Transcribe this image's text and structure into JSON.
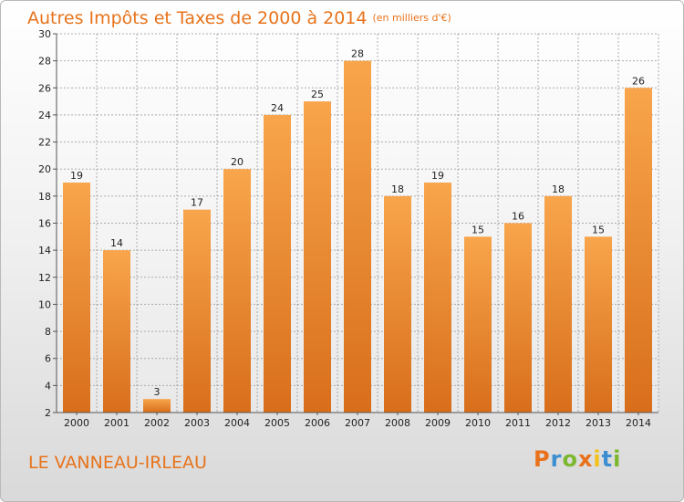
{
  "header": {
    "title": "Autres Impôts et Taxes de 2000 à 2014",
    "unit": "(en milliers d'€)"
  },
  "footer": {
    "location": "LE VANNEAU-IRLEAU",
    "logo": {
      "letters": [
        "P",
        "r",
        "o",
        "x",
        "i",
        "t",
        "i"
      ],
      "colors": [
        "#e9711c",
        "#3d8fd1",
        "#7cb82f",
        "#e9711c",
        "#f2c21b",
        "#3d8fd1",
        "#7cb82f"
      ]
    }
  },
  "colors": {
    "bar_top": "#f8a54c",
    "bar_bottom": "#d86e1b",
    "title": "#e8731b",
    "grid": "#9a9a9a"
  },
  "chart_data": {
    "type": "bar",
    "title": "Autres Impôts et Taxes de 2000 à 2014",
    "subtitle": "(en milliers d'€)",
    "xlabel": "",
    "ylabel": "",
    "categories": [
      "2000",
      "2001",
      "2002",
      "2003",
      "2004",
      "2005",
      "2006",
      "2007",
      "2008",
      "2009",
      "2010",
      "2011",
      "2012",
      "2013",
      "2014"
    ],
    "values": [
      19,
      14,
      3,
      17,
      20,
      24,
      25,
      28,
      18,
      19,
      15,
      16,
      18,
      15,
      26
    ],
    "ylim": [
      2,
      30
    ],
    "yticks": [
      2,
      4,
      6,
      8,
      10,
      12,
      14,
      16,
      18,
      20,
      22,
      24,
      26,
      28,
      30
    ],
    "grid": true,
    "data_labels": true
  }
}
